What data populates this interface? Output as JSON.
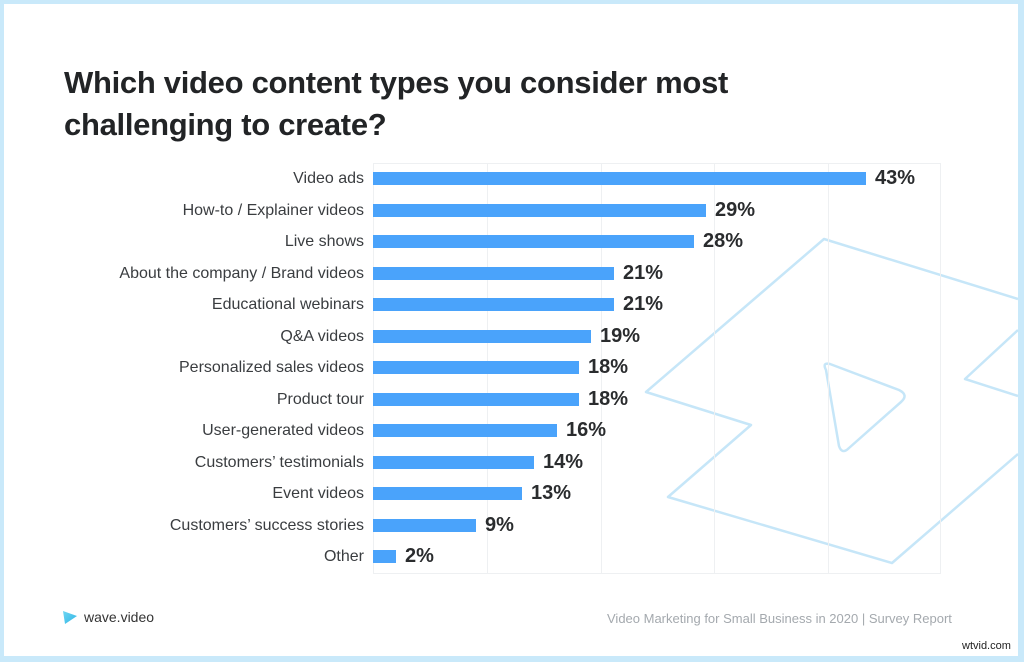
{
  "title": "Which video content types you consider most challenging to create?",
  "chart_data": {
    "type": "bar",
    "orientation": "horizontal",
    "title": "Which video content types you consider most challenging to create?",
    "xlabel": "",
    "ylabel": "",
    "categories": [
      "Video ads",
      "How-to / Explainer videos",
      "Live shows",
      "About the company / Brand videos",
      "Educational webinars",
      "Q&A videos",
      "Personalized sales videos",
      "Product tour",
      "User-generated videos",
      "Customers’ testimonials",
      "Event videos",
      "Customers’ success stories",
      "Other"
    ],
    "values": [
      43,
      29,
      28,
      21,
      21,
      19,
      18,
      18,
      16,
      14,
      13,
      9,
      2
    ],
    "value_labels": [
      "43%",
      "29%",
      "28%",
      "21%",
      "21%",
      "19%",
      "18%",
      "18%",
      "16%",
      "14%",
      "13%",
      "9%",
      "2%"
    ],
    "unit": "%",
    "xlim": [
      0,
      49.5
    ],
    "grid": true,
    "gridlines_count": 6,
    "legend": "none",
    "bar_color": "#4aa3fb"
  },
  "rows": [
    {
      "label": "Video ads",
      "value": 43,
      "display": "43%"
    },
    {
      "label": "How-to / Explainer videos",
      "value": 29,
      "display": "29%"
    },
    {
      "label": "Live shows",
      "value": 28,
      "display": "28%"
    },
    {
      "label": "About the company / Brand videos",
      "value": 21,
      "display": "21%"
    },
    {
      "label": "Educational webinars",
      "value": 21,
      "display": "21%"
    },
    {
      "label": "Q&A videos",
      "value": 19,
      "display": "19%"
    },
    {
      "label": "Personalized sales videos",
      "value": 18,
      "display": "18%"
    },
    {
      "label": "Product tour",
      "value": 18,
      "display": "18%"
    },
    {
      "label": "User-generated videos",
      "value": 16,
      "display": "16%"
    },
    {
      "label": "Customers’ testimonials",
      "value": 14,
      "display": "14%"
    },
    {
      "label": "Event videos",
      "value": 13,
      "display": "13%"
    },
    {
      "label": "Customers’ success stories",
      "value": 9,
      "display": "9%"
    },
    {
      "label": "Other",
      "value": 2,
      "display": "2%"
    }
  ],
  "brand": {
    "name": "wave.video",
    "icon": "play-triangle-icon"
  },
  "footer": {
    "text": "Video Marketing for Small Business in 2020 | Survey Report"
  },
  "watermark": {
    "text": "wtvid.com"
  },
  "colors": {
    "bar": "#4aa3fb",
    "frame": "#c9e9fa",
    "decoration": "#c6e6f8",
    "title": "#222426"
  }
}
